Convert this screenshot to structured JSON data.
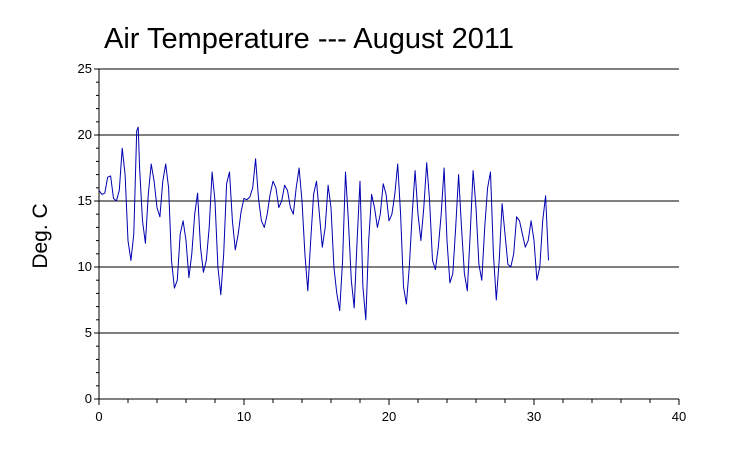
{
  "chart_data": {
    "type": "line",
    "title": "Air Temperature --- August 2011",
    "xlabel": "",
    "ylabel": "Deg. C",
    "xlim": [
      0,
      40
    ],
    "ylim": [
      0,
      25
    ],
    "x_ticks": [
      "0",
      "10",
      "20",
      "30",
      "40"
    ],
    "y_ticks": [
      "0",
      "5",
      "10",
      "15",
      "20",
      "25"
    ],
    "grid": "horizontal",
    "series_color": "#0000b0",
    "series": [
      {
        "points": [
          [
            0.0,
            15.8
          ],
          [
            0.2,
            15.5
          ],
          [
            0.4,
            15.6
          ],
          [
            0.6,
            16.8
          ],
          [
            0.8,
            16.9
          ],
          [
            1.0,
            15.2
          ],
          [
            1.2,
            15.0
          ],
          [
            1.4,
            15.8
          ],
          [
            1.6,
            19.0
          ],
          [
            1.8,
            17.0
          ],
          [
            2.0,
            12.0
          ],
          [
            2.2,
            10.5
          ],
          [
            2.4,
            12.5
          ],
          [
            2.6,
            20.3
          ],
          [
            2.7,
            20.6
          ],
          [
            2.8,
            17.5
          ],
          [
            3.0,
            13.5
          ],
          [
            3.2,
            11.8
          ],
          [
            3.4,
            15.5
          ],
          [
            3.6,
            17.8
          ],
          [
            3.8,
            16.5
          ],
          [
            4.0,
            14.5
          ],
          [
            4.2,
            13.8
          ],
          [
            4.4,
            16.5
          ],
          [
            4.6,
            17.8
          ],
          [
            4.8,
            16.0
          ],
          [
            5.0,
            10.5
          ],
          [
            5.2,
            8.4
          ],
          [
            5.4,
            9.0
          ],
          [
            5.6,
            12.5
          ],
          [
            5.8,
            13.5
          ],
          [
            6.0,
            12.0
          ],
          [
            6.2,
            9.2
          ],
          [
            6.4,
            11.0
          ],
          [
            6.6,
            14.0
          ],
          [
            6.8,
            15.6
          ],
          [
            7.0,
            11.5
          ],
          [
            7.2,
            9.6
          ],
          [
            7.4,
            10.5
          ],
          [
            7.6,
            13.0
          ],
          [
            7.8,
            17.2
          ],
          [
            8.0,
            15.0
          ],
          [
            8.2,
            10.0
          ],
          [
            8.4,
            7.9
          ],
          [
            8.6,
            11.0
          ],
          [
            8.8,
            16.3
          ],
          [
            9.0,
            17.2
          ],
          [
            9.2,
            13.5
          ],
          [
            9.4,
            11.3
          ],
          [
            9.6,
            12.5
          ],
          [
            9.8,
            14.2
          ],
          [
            10.0,
            15.2
          ],
          [
            10.2,
            15.1
          ],
          [
            10.4,
            15.3
          ],
          [
            10.6,
            16.0
          ],
          [
            10.8,
            18.2
          ],
          [
            11.0,
            15.2
          ],
          [
            11.2,
            13.5
          ],
          [
            11.4,
            13.0
          ],
          [
            11.6,
            14.0
          ],
          [
            11.8,
            15.5
          ],
          [
            12.0,
            16.5
          ],
          [
            12.2,
            16.0
          ],
          [
            12.4,
            14.5
          ],
          [
            12.6,
            15.0
          ],
          [
            12.8,
            16.2
          ],
          [
            13.0,
            15.8
          ],
          [
            13.2,
            14.5
          ],
          [
            13.4,
            14.0
          ],
          [
            13.6,
            16.0
          ],
          [
            13.8,
            17.5
          ],
          [
            14.0,
            15.0
          ],
          [
            14.2,
            11.0
          ],
          [
            14.4,
            8.2
          ],
          [
            14.6,
            12.0
          ],
          [
            14.8,
            15.5
          ],
          [
            15.0,
            16.5
          ],
          [
            15.2,
            14.0
          ],
          [
            15.4,
            11.5
          ],
          [
            15.6,
            13.0
          ],
          [
            15.8,
            16.2
          ],
          [
            16.0,
            14.5
          ],
          [
            16.2,
            10.0
          ],
          [
            16.4,
            8.0
          ],
          [
            16.6,
            6.7
          ],
          [
            16.8,
            10.5
          ],
          [
            17.0,
            17.2
          ],
          [
            17.2,
            13.5
          ],
          [
            17.4,
            9.0
          ],
          [
            17.6,
            6.9
          ],
          [
            17.8,
            12.0
          ],
          [
            18.0,
            16.5
          ],
          [
            18.2,
            8.5
          ],
          [
            18.4,
            6.0
          ],
          [
            18.6,
            12.0
          ],
          [
            18.8,
            15.5
          ],
          [
            19.0,
            14.5
          ],
          [
            19.2,
            13.0
          ],
          [
            19.4,
            14.0
          ],
          [
            19.6,
            16.3
          ],
          [
            19.8,
            15.5
          ],
          [
            20.0,
            13.5
          ],
          [
            20.2,
            14.0
          ],
          [
            20.4,
            15.5
          ],
          [
            20.6,
            17.8
          ],
          [
            20.8,
            14.0
          ],
          [
            21.0,
            8.5
          ],
          [
            21.2,
            7.2
          ],
          [
            21.4,
            10.0
          ],
          [
            21.6,
            14.0
          ],
          [
            21.8,
            17.3
          ],
          [
            22.0,
            14.0
          ],
          [
            22.2,
            12.0
          ],
          [
            22.4,
            14.5
          ],
          [
            22.6,
            17.9
          ],
          [
            22.8,
            15.0
          ],
          [
            23.0,
            10.5
          ],
          [
            23.2,
            9.8
          ],
          [
            23.4,
            11.5
          ],
          [
            23.6,
            14.0
          ],
          [
            23.8,
            17.5
          ],
          [
            24.0,
            12.0
          ],
          [
            24.2,
            8.8
          ],
          [
            24.4,
            9.5
          ],
          [
            24.6,
            13.0
          ],
          [
            24.8,
            17.0
          ],
          [
            25.0,
            13.0
          ],
          [
            25.2,
            9.5
          ],
          [
            25.4,
            8.2
          ],
          [
            25.6,
            12.5
          ],
          [
            25.8,
            17.3
          ],
          [
            26.0,
            14.5
          ],
          [
            26.2,
            10.2
          ],
          [
            26.4,
            9.0
          ],
          [
            26.6,
            13.0
          ],
          [
            26.8,
            16.0
          ],
          [
            27.0,
            17.2
          ],
          [
            27.2,
            11.0
          ],
          [
            27.4,
            7.5
          ],
          [
            27.6,
            10.5
          ],
          [
            27.8,
            14.8
          ],
          [
            28.0,
            12.5
          ],
          [
            28.2,
            10.2
          ],
          [
            28.4,
            10.0
          ],
          [
            28.6,
            11.0
          ],
          [
            28.8,
            13.8
          ],
          [
            29.0,
            13.5
          ],
          [
            29.2,
            12.5
          ],
          [
            29.4,
            11.5
          ],
          [
            29.6,
            12.0
          ],
          [
            29.8,
            13.5
          ],
          [
            30.0,
            12.0
          ],
          [
            30.2,
            9.0
          ],
          [
            30.4,
            10.0
          ],
          [
            30.6,
            13.5
          ],
          [
            30.8,
            15.4
          ],
          [
            31.0,
            10.5
          ]
        ]
      }
    ]
  }
}
